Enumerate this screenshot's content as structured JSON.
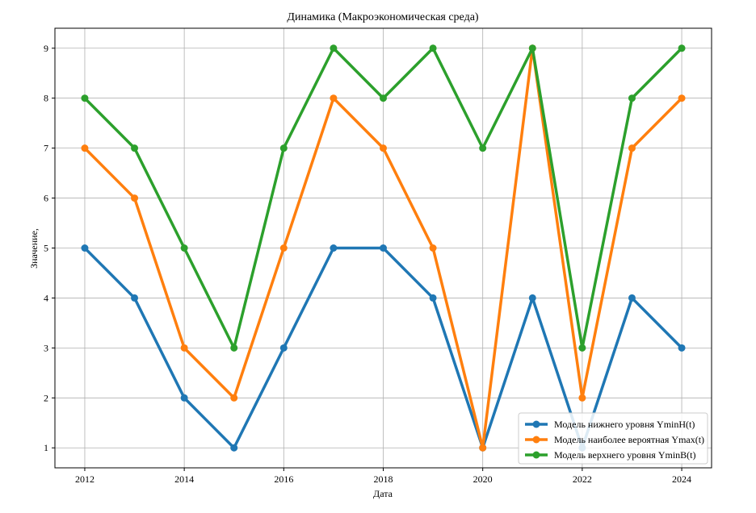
{
  "chart_data": {
    "type": "line",
    "title": "Динамика (Макроэкономическая среда)",
    "xlabel": "Дата",
    "ylabel": "Значение,",
    "x": [
      2012,
      2013,
      2014,
      2015,
      2016,
      2017,
      2018,
      2019,
      2020,
      2021,
      2022,
      2023,
      2024
    ],
    "xticks": [
      2012,
      2014,
      2016,
      2018,
      2020,
      2022,
      2024
    ],
    "xlim": [
      2011.4,
      2024.6
    ],
    "yticks": [
      1,
      2,
      3,
      4,
      5,
      6,
      7,
      8,
      9
    ],
    "ylim": [
      0.6,
      9.4
    ],
    "grid": true,
    "legend_position": "bottom-right",
    "series": [
      {
        "name": "Модель нижнего уровня YminH(t)",
        "color": "#1f77b4",
        "values": [
          5,
          4,
          2,
          1,
          3,
          5,
          5,
          4,
          1,
          4,
          1,
          4,
          3
        ]
      },
      {
        "name": "Модель наиболее вероятная Ymax(t)",
        "color": "#ff7f0e",
        "values": [
          7,
          6,
          3,
          2,
          5,
          8,
          7,
          5,
          1,
          9,
          2,
          7,
          8
        ]
      },
      {
        "name": "Модель верхнего уровня YminB(t)",
        "color": "#2ca02c",
        "values": [
          8,
          7,
          5,
          3,
          7,
          9,
          8,
          9,
          7,
          9,
          3,
          8,
          9
        ]
      }
    ]
  }
}
